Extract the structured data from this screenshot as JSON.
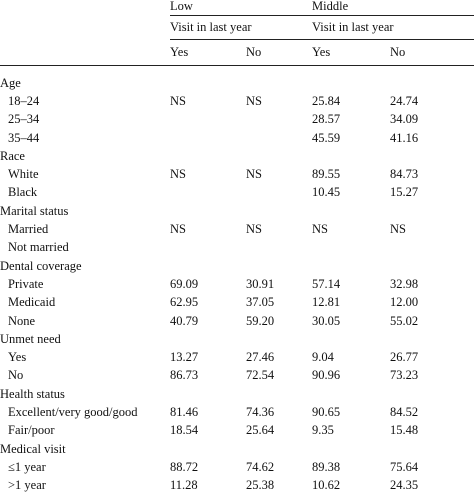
{
  "header": {
    "groups": [
      "Low",
      "Middle"
    ],
    "subheader": "Visit in last year",
    "columns": [
      "Yes",
      "No",
      "Yes",
      "No"
    ]
  },
  "sections": [
    {
      "title": "Age",
      "rows": [
        {
          "label": "18–24",
          "values": [
            "NS",
            "NS",
            "25.84",
            "24.74"
          ]
        },
        {
          "label": "25–34",
          "values": [
            "",
            "",
            "28.57",
            "34.09"
          ]
        },
        {
          "label": "35–44",
          "values": [
            "",
            "",
            "45.59",
            "41.16"
          ]
        }
      ]
    },
    {
      "title": "Race",
      "rows": [
        {
          "label": "White",
          "values": [
            "NS",
            "NS",
            "89.55",
            "84.73"
          ]
        },
        {
          "label": "Black",
          "values": [
            "",
            "",
            "10.45",
            "15.27"
          ]
        }
      ]
    },
    {
      "title": "Marital status",
      "rows": [
        {
          "label": "Married",
          "values": [
            "NS",
            "NS",
            "NS",
            "NS"
          ]
        },
        {
          "label": "Not married",
          "values": [
            "",
            "",
            "",
            ""
          ]
        }
      ]
    },
    {
      "title": "Dental coverage",
      "rows": [
        {
          "label": "Private",
          "values": [
            "69.09",
            "30.91",
            "57.14",
            "32.98"
          ]
        },
        {
          "label": "Medicaid",
          "values": [
            "62.95",
            "37.05",
            "12.81",
            "12.00"
          ]
        },
        {
          "label": "None",
          "values": [
            "40.79",
            "59.20",
            "30.05",
            "55.02"
          ]
        }
      ]
    },
    {
      "title": "Unmet need",
      "rows": [
        {
          "label": "Yes",
          "values": [
            "13.27",
            "27.46",
            "9.04",
            "26.77"
          ]
        },
        {
          "label": "No",
          "values": [
            "86.73",
            "72.54",
            "90.96",
            "73.23"
          ]
        }
      ]
    },
    {
      "title": "Health status",
      "rows": [
        {
          "label": "Excellent/very good/good",
          "values": [
            "81.46",
            "74.36",
            "90.65",
            "84.52"
          ]
        },
        {
          "label": "Fair/poor",
          "values": [
            "18.54",
            "25.64",
            "9.35",
            "15.48"
          ]
        }
      ]
    },
    {
      "title": "Medical visit",
      "rows": [
        {
          "label": "≤1 year",
          "values": [
            "88.72",
            "74.62",
            "89.38",
            "75.64"
          ]
        },
        {
          "label": ">1 year",
          "values": [
            "11.28",
            "25.38",
            "10.62",
            "24.35"
          ]
        }
      ]
    }
  ]
}
